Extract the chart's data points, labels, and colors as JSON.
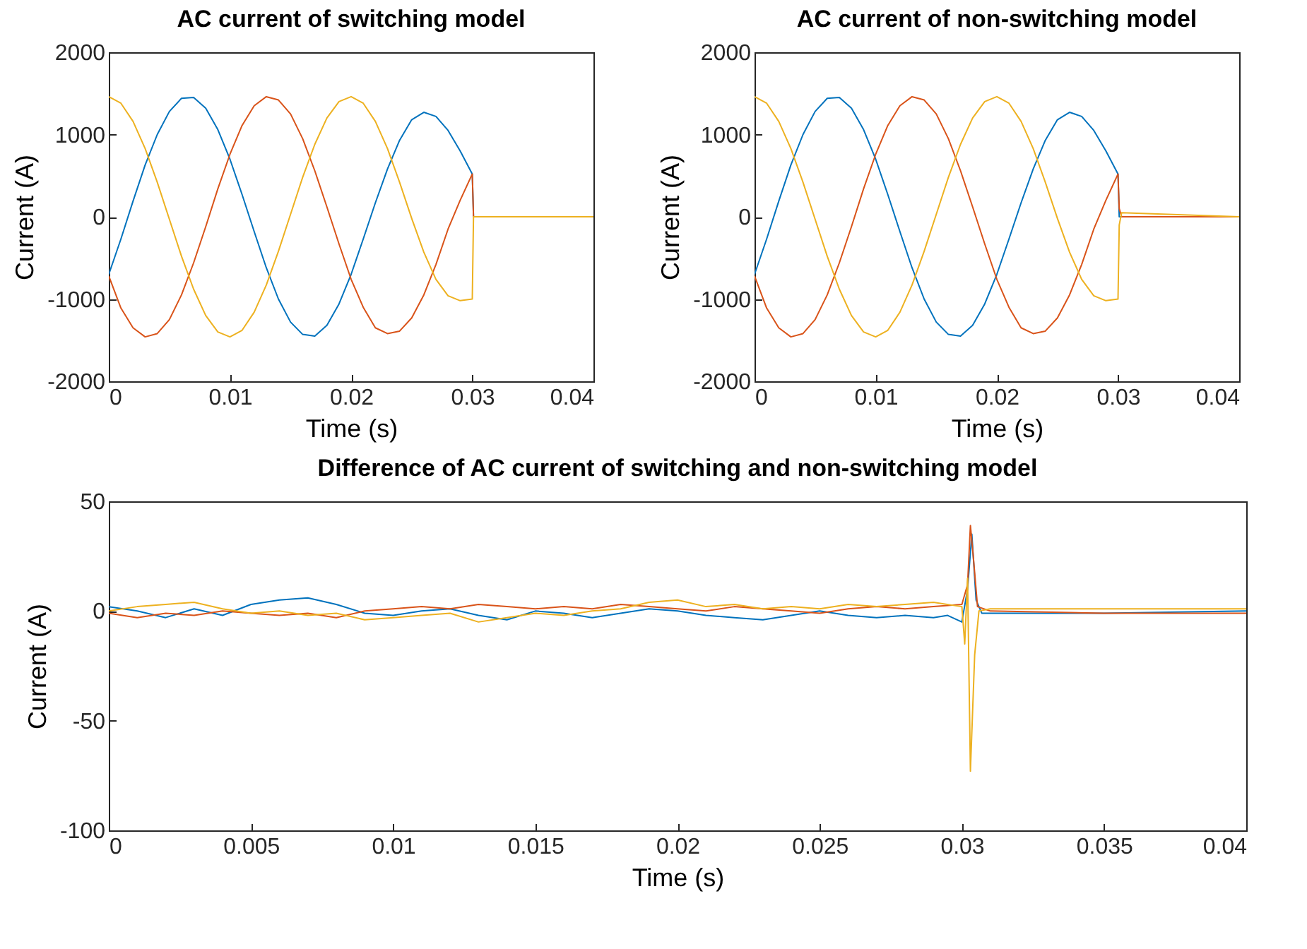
{
  "chart_data": [
    {
      "type": "line",
      "title": "AC current of switching model",
      "xlabel": "Time (s)",
      "ylabel": "Current (A)",
      "xlim": [
        0,
        0.04
      ],
      "xticks": [
        0,
        0.01,
        0.02,
        0.03,
        0.04
      ],
      "ylim": [
        -2000,
        2000
      ],
      "yticks": [
        -2000,
        -1000,
        0,
        1000,
        2000
      ],
      "x": [
        0,
        0.001,
        0.002,
        0.003,
        0.004,
        0.005,
        0.006,
        0.007,
        0.008,
        0.009,
        0.01,
        0.011,
        0.012,
        0.013,
        0.014,
        0.015,
        0.016,
        0.017,
        0.018,
        0.019,
        0.02,
        0.021,
        0.022,
        0.023,
        0.024,
        0.025,
        0.026,
        0.027,
        0.028,
        0.029,
        0.03,
        0.0301,
        0.04
      ],
      "series": [
        {
          "color": "#0072bd",
          "values": [
            -700,
            -270,
            190,
            630,
            1000,
            1280,
            1440,
            1450,
            1320,
            1060,
            700,
            270,
            -180,
            -620,
            -1000,
            -1280,
            -1430,
            -1450,
            -1320,
            -1060,
            -700,
            -270,
            170,
            580,
            930,
            1180,
            1270,
            1220,
            1050,
            800,
            520,
            0,
            0
          ]
        },
        {
          "color": "#d95319",
          "values": [
            -720,
            -1110,
            -1350,
            -1460,
            -1420,
            -1250,
            -950,
            -560,
            -120,
            340,
            760,
            1110,
            1350,
            1460,
            1420,
            1250,
            950,
            560,
            120,
            -330,
            -760,
            -1100,
            -1350,
            -1420,
            -1390,
            -1230,
            -950,
            -580,
            -150,
            200,
            520,
            0,
            0
          ]
        },
        {
          "color": "#edb120",
          "values": [
            1460,
            1380,
            1160,
            830,
            420,
            -30,
            -480,
            -880,
            -1200,
            -1400,
            -1460,
            -1380,
            -1160,
            -830,
            -420,
            30,
            480,
            880,
            1200,
            1400,
            1460,
            1380,
            1160,
            830,
            420,
            -20,
            -430,
            -760,
            -960,
            -1020,
            -1000,
            0,
            0
          ]
        }
      ]
    },
    {
      "type": "line",
      "title": "AC current of non-switching model",
      "xlabel": "Time (s)",
      "ylabel": "Current (A)",
      "xlim": [
        0,
        0.04
      ],
      "xticks": [
        0,
        0.01,
        0.02,
        0.03,
        0.04
      ],
      "ylim": [
        -2000,
        2000
      ],
      "yticks": [
        -2000,
        -1000,
        0,
        1000,
        2000
      ],
      "x": [
        0,
        0.001,
        0.002,
        0.003,
        0.004,
        0.005,
        0.006,
        0.007,
        0.008,
        0.009,
        0.01,
        0.011,
        0.012,
        0.013,
        0.014,
        0.015,
        0.016,
        0.017,
        0.018,
        0.019,
        0.02,
        0.021,
        0.022,
        0.023,
        0.024,
        0.025,
        0.026,
        0.027,
        0.028,
        0.029,
        0.03,
        0.0301,
        0.0303,
        0.04
      ],
      "series": [
        {
          "color": "#0072bd",
          "values": [
            -700,
            -270,
            190,
            630,
            1000,
            1280,
            1440,
            1450,
            1320,
            1060,
            700,
            270,
            -180,
            -620,
            -1000,
            -1280,
            -1430,
            -1450,
            -1320,
            -1060,
            -700,
            -270,
            170,
            580,
            930,
            1180,
            1270,
            1220,
            1050,
            800,
            520,
            0,
            0,
            0
          ]
        },
        {
          "color": "#d95319",
          "values": [
            -720,
            -1110,
            -1350,
            -1460,
            -1420,
            -1250,
            -950,
            -560,
            -120,
            340,
            760,
            1110,
            1350,
            1460,
            1420,
            1250,
            950,
            560,
            120,
            -330,
            -760,
            -1100,
            -1350,
            -1420,
            -1390,
            -1230,
            -950,
            -580,
            -150,
            200,
            520,
            100,
            0,
            0
          ]
        },
        {
          "color": "#edb120",
          "values": [
            1460,
            1380,
            1160,
            830,
            420,
            -30,
            -480,
            -880,
            -1200,
            -1400,
            -1460,
            -1380,
            -1160,
            -830,
            -420,
            30,
            480,
            880,
            1200,
            1400,
            1460,
            1380,
            1160,
            830,
            420,
            -20,
            -430,
            -760,
            -960,
            -1020,
            -1000,
            -100,
            50,
            0
          ]
        }
      ]
    },
    {
      "type": "line",
      "title": "Difference of AC current of switching and non-switching model",
      "xlabel": "Time (s)",
      "ylabel": "Current (A)",
      "xlim": [
        0,
        0.04
      ],
      "xticks": [
        0,
        0.005,
        0.01,
        0.015,
        0.02,
        0.025,
        0.03,
        0.035,
        0.04
      ],
      "ylim": [
        -100,
        50
      ],
      "yticks": [
        -100,
        -50,
        0,
        50
      ],
      "series": [
        {
          "color": "#0072bd",
          "x": [
            0,
            0.001,
            0.002,
            0.003,
            0.004,
            0.005,
            0.006,
            0.007,
            0.008,
            0.009,
            0.01,
            0.011,
            0.012,
            0.013,
            0.014,
            0.015,
            0.016,
            0.017,
            0.018,
            0.019,
            0.02,
            0.021,
            0.022,
            0.023,
            0.024,
            0.025,
            0.026,
            0.027,
            0.028,
            0.029,
            0.0295,
            0.03,
            0.0302,
            0.03035,
            0.0305,
            0.0307,
            0.032,
            0.035,
            0.04
          ],
          "values": [
            2,
            0,
            -3,
            1,
            -2,
            3,
            5,
            6,
            3,
            -1,
            -2,
            0,
            1,
            -2,
            -4,
            0,
            -1,
            -3,
            -1,
            1,
            0,
            -2,
            -3,
            -4,
            -2,
            0,
            -2,
            -3,
            -2,
            -3,
            -2,
            -5,
            10,
            35,
            5,
            -1,
            -1,
            -1,
            0
          ]
        },
        {
          "color": "#d95319",
          "x": [
            0,
            0.001,
            0.002,
            0.003,
            0.004,
            0.005,
            0.006,
            0.007,
            0.008,
            0.009,
            0.01,
            0.011,
            0.012,
            0.013,
            0.014,
            0.015,
            0.016,
            0.017,
            0.018,
            0.019,
            0.02,
            0.021,
            0.022,
            0.023,
            0.024,
            0.025,
            0.026,
            0.027,
            0.028,
            0.029,
            0.03,
            0.0302,
            0.0303,
            0.0304,
            0.03055,
            0.031,
            0.035,
            0.04
          ],
          "values": [
            -1,
            -3,
            -1,
            -2,
            0,
            -1,
            -2,
            -1,
            -3,
            0,
            1,
            2,
            1,
            3,
            2,
            1,
            2,
            1,
            3,
            2,
            1,
            0,
            2,
            1,
            0,
            -1,
            1,
            2,
            1,
            2,
            3,
            12,
            39,
            25,
            2,
            0,
            -1,
            -1
          ]
        },
        {
          "color": "#edb120",
          "x": [
            0,
            0.001,
            0.002,
            0.003,
            0.004,
            0.005,
            0.006,
            0.007,
            0.008,
            0.009,
            0.01,
            0.011,
            0.012,
            0.013,
            0.014,
            0.015,
            0.016,
            0.017,
            0.018,
            0.019,
            0.02,
            0.021,
            0.022,
            0.023,
            0.024,
            0.025,
            0.026,
            0.027,
            0.028,
            0.029,
            0.03,
            0.0301,
            0.0302,
            0.0303,
            0.03045,
            0.0306,
            0.031,
            0.035,
            0.04
          ],
          "values": [
            0,
            2,
            3,
            4,
            1,
            -1,
            0,
            -2,
            -1,
            -4,
            -3,
            -2,
            -1,
            -5,
            -3,
            -1,
            -2,
            0,
            1,
            4,
            5,
            2,
            3,
            1,
            2,
            1,
            3,
            2,
            3,
            4,
            2,
            -15,
            15,
            -73,
            -20,
            0,
            1,
            1,
            1
          ]
        }
      ]
    }
  ]
}
